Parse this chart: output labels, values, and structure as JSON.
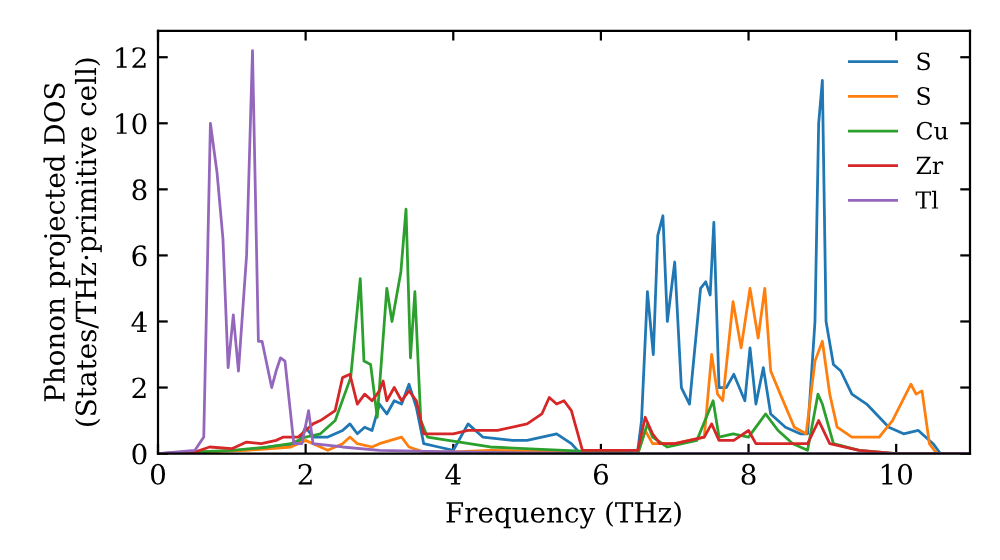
{
  "chart_data": {
    "type": "line",
    "xlabel": "Frequency (THz)",
    "ylabel": "Phonon projected DOS\n(States/THz·primitive cell)",
    "xlim": [
      0,
      11
    ],
    "xticks": [
      0,
      2,
      4,
      6,
      8,
      10
    ],
    "ylim": [
      0,
      12.8
    ],
    "yticks": [
      0,
      2,
      4,
      6,
      8,
      10,
      12
    ],
    "grid": false,
    "legend": "top right",
    "marker": "none",
    "line_style": "solid",
    "series": [
      {
        "name": "S",
        "color": "#1f77b4",
        "x": [
          1.5,
          1.9,
          2.0,
          2.1,
          2.3,
          2.5,
          2.6,
          2.7,
          2.8,
          2.9,
          3.0,
          3.1,
          3.2,
          3.3,
          3.4,
          3.5,
          3.6,
          3.8,
          4.0,
          4.2,
          4.4,
          4.8,
          5.0,
          5.2,
          5.4,
          5.6,
          5.7,
          6.5,
          6.55,
          6.63,
          6.71,
          6.77,
          6.84,
          6.9,
          7.0,
          7.09,
          7.2,
          7.35,
          7.42,
          7.48,
          7.53,
          7.6,
          7.7,
          7.8,
          7.95,
          8.02,
          8.1,
          8.2,
          8.3,
          8.5,
          8.7,
          8.8,
          8.9,
          8.95,
          9.0,
          9.05,
          9.15,
          9.25,
          9.4,
          9.6,
          9.9,
          10.1,
          10.3,
          10.5,
          10.6
        ],
        "values": [
          0.2,
          0.3,
          0.8,
          0.5,
          0.5,
          0.7,
          0.9,
          0.6,
          0.8,
          0.7,
          1.5,
          1.2,
          1.6,
          1.5,
          2.1,
          1.4,
          0.3,
          0.2,
          0.1,
          0.9,
          0.5,
          0.4,
          0.4,
          0.5,
          0.6,
          0.3,
          0.05,
          0.1,
          1.0,
          4.9,
          3.0,
          6.6,
          7.2,
          4.0,
          5.8,
          2.0,
          1.5,
          5.0,
          5.2,
          4.8,
          7.0,
          2.0,
          2.0,
          2.4,
          1.6,
          3.2,
          1.5,
          2.6,
          1.2,
          0.8,
          0.6,
          0.6,
          4.0,
          10.0,
          11.3,
          4.0,
          2.7,
          2.5,
          1.8,
          1.5,
          0.8,
          0.6,
          0.7,
          0.3,
          0
        ]
      },
      {
        "name": "S",
        "color": "#ff7f0e",
        "x": [
          0,
          1.2,
          1.8,
          2.0,
          2.1,
          2.3,
          2.5,
          2.6,
          2.7,
          2.9,
          3.0,
          3.3,
          3.4,
          3.6,
          4.0,
          4.5,
          5.5,
          6.5,
          6.6,
          6.7,
          7.0,
          7.4,
          7.5,
          7.58,
          7.65,
          7.79,
          7.9,
          8.02,
          8.13,
          8.22,
          8.3,
          8.43,
          8.62,
          8.78,
          8.9,
          9.0,
          9.1,
          9.2,
          9.4,
          9.77,
          9.95,
          10.2,
          10.27,
          10.35,
          10.45,
          10.55
        ],
        "values": [
          0,
          0.1,
          0.2,
          0.4,
          0.3,
          0.1,
          0.3,
          0.5,
          0.3,
          0.2,
          0.3,
          0.5,
          0.2,
          0.05,
          0.05,
          0.1,
          0.05,
          0,
          0.7,
          0.3,
          0.3,
          0.5,
          3.0,
          1.8,
          1.6,
          4.6,
          3.2,
          5.0,
          3.5,
          5.0,
          2.5,
          1.8,
          0.8,
          0.6,
          2.8,
          3.4,
          1.8,
          0.8,
          0.5,
          0.5,
          1.0,
          2.1,
          1.8,
          1.9,
          0.3,
          0
        ]
      },
      {
        "name": "Cu",
        "color": "#2ca02c",
        "x": [
          0,
          1.0,
          1.5,
          1.8,
          2.0,
          2.2,
          2.4,
          2.61,
          2.74,
          2.79,
          2.88,
          2.97,
          3.1,
          3.17,
          3.29,
          3.36,
          3.42,
          3.48,
          3.56,
          3.65,
          4.5,
          5.5,
          6.5,
          6.63,
          6.7,
          6.9,
          7.3,
          7.52,
          7.6,
          7.79,
          8.0,
          8.23,
          8.4,
          8.6,
          8.8,
          8.94,
          9.0,
          9.15,
          9.5,
          10.0,
          11.0
        ],
        "values": [
          0,
          0.1,
          0.2,
          0.3,
          0.5,
          0.6,
          1.0,
          2.3,
          5.3,
          2.8,
          2.7,
          1.1,
          5.0,
          4.0,
          5.5,
          7.4,
          2.9,
          4.9,
          1.0,
          0.5,
          0.2,
          0.1,
          0,
          0.9,
          0.5,
          0.2,
          0.4,
          1.6,
          0.5,
          0.6,
          0.5,
          1.2,
          0.7,
          0.3,
          0.1,
          1.8,
          1.5,
          0.3,
          0.1,
          0,
          0
        ]
      },
      {
        "name": "Zr",
        "color": "#d62728",
        "x": [
          0,
          0.5,
          0.7,
          1.0,
          1.2,
          1.4,
          1.6,
          1.7,
          1.9,
          2.0,
          2.1,
          2.2,
          2.4,
          2.5,
          2.6,
          2.7,
          2.8,
          2.9,
          3.0,
          3.05,
          3.1,
          3.2,
          3.3,
          3.4,
          3.5,
          3.6,
          4.0,
          4.2,
          4.4,
          4.6,
          5.0,
          5.2,
          5.3,
          5.4,
          5.5,
          5.6,
          5.7,
          5.75,
          6.5,
          6.6,
          6.7,
          6.8,
          7.0,
          7.2,
          7.4,
          7.5,
          7.6,
          7.8,
          8.0,
          8.1,
          8.3,
          8.5,
          8.8,
          8.95,
          9.1,
          9.5,
          10.0,
          11.0
        ],
        "values": [
          0,
          0.05,
          0.2,
          0.15,
          0.35,
          0.3,
          0.4,
          0.5,
          0.5,
          0.7,
          0.9,
          1.0,
          1.3,
          2.3,
          2.4,
          1.5,
          1.8,
          1.6,
          1.9,
          2.2,
          1.6,
          2.0,
          1.6,
          1.9,
          1.6,
          0.6,
          0.6,
          0.7,
          0.7,
          0.7,
          0.9,
          1.2,
          1.7,
          1.5,
          1.6,
          1.3,
          0.5,
          0.1,
          0.1,
          1.1,
          0.6,
          0.3,
          0.3,
          0.4,
          0.5,
          0.9,
          0.4,
          0.4,
          0.7,
          0.3,
          0.3,
          0.3,
          0.3,
          1.0,
          0.3,
          0.1,
          0,
          0
        ]
      },
      {
        "name": "Tl",
        "color": "#9467bd",
        "x": [
          0,
          0.5,
          0.62,
          0.71,
          0.8,
          0.88,
          0.95,
          1.02,
          1.09,
          1.2,
          1.28,
          1.36,
          1.41,
          1.54,
          1.6,
          1.66,
          1.72,
          1.84,
          1.95,
          2.04,
          2.1,
          2.5,
          3.0,
          4.0,
          6.0,
          11.0
        ],
        "values": [
          0,
          0.1,
          0.5,
          10.0,
          8.5,
          6.5,
          2.6,
          4.2,
          2.5,
          6.0,
          12.2,
          3.4,
          3.4,
          2.0,
          2.5,
          2.9,
          2.8,
          0.3,
          0.3,
          1.3,
          0.3,
          0.2,
          0.1,
          0.05,
          0,
          0
        ]
      }
    ]
  }
}
